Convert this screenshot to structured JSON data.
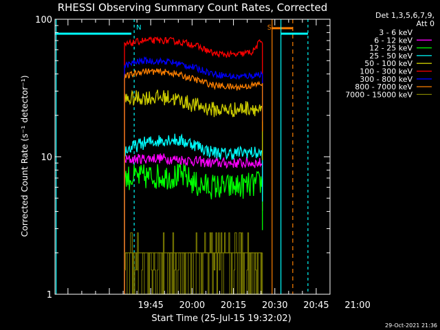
{
  "chart_data": {
    "type": "line",
    "title": "RHESSI Observing Summary Count Rates, Corrected",
    "xlabel": "Start Time (25-Jul-15 19:32:02)",
    "ylabel": "Corrected Count Rate (s⁻¹ detector⁻¹)",
    "y_scale": "log",
    "ylim": [
      1,
      100
    ],
    "x_range_minutes": [
      -21.7,
      78
    ],
    "x_ticks": [
      {
        "t": 13,
        "label": "19:45"
      },
      {
        "t": 28,
        "label": "20:00"
      },
      {
        "t": 43,
        "label": "20:15"
      },
      {
        "t": 58,
        "label": "20:30"
      },
      {
        "t": 73,
        "label": "20:45"
      },
      {
        "t": 88,
        "label": "21:00"
      }
    ],
    "y_ticks": [
      {
        "v": 1,
        "label": "1"
      },
      {
        "v": 10,
        "label": "10"
      },
      {
        "v": 100,
        "label": "100"
      }
    ],
    "legend_header": [
      "Det 1,3,5,6,7,9,",
      "Att 0"
    ],
    "legend_placement": "right",
    "timestamp": "29-Oct-2021 21:36",
    "data_start": 3.5,
    "data_end": 53.5,
    "series": [
      {
        "name": "3 - 6 keV",
        "color": "#000000",
        "values": [
          [
            3.5,
            25
          ],
          [
            10,
            25
          ],
          [
            20,
            25
          ],
          [
            28,
            25
          ],
          [
            34,
            24
          ],
          [
            38,
            24
          ],
          [
            45,
            25
          ],
          [
            53,
            25
          ]
        ],
        "noise": 0.03
      },
      {
        "name": "6 - 12 keV",
        "color": "#ff00ff",
        "values": [
          [
            3.5,
            9.5
          ],
          [
            15,
            9.8
          ],
          [
            25,
            9.5
          ],
          [
            35,
            9.0
          ],
          [
            45,
            9.0
          ],
          [
            53,
            9.0
          ]
        ],
        "noise": 0.04
      },
      {
        "name": "12 - 25 keV",
        "color": "#00ff00",
        "values": [
          [
            3.5,
            7
          ],
          [
            15,
            7.2
          ],
          [
            25,
            7.2
          ],
          [
            30,
            6.2
          ],
          [
            40,
            6.0
          ],
          [
            50,
            6.2
          ],
          [
            53,
            6.5
          ]
        ],
        "noise": 0.1
      },
      {
        "name": "25 - 50 keV",
        "color": "#00ffff",
        "values": [
          [
            3.5,
            11
          ],
          [
            10,
            12.5
          ],
          [
            20,
            13.5
          ],
          [
            28,
            12.5
          ],
          [
            34,
            11
          ],
          [
            40,
            10.5
          ],
          [
            48,
            10.8
          ],
          [
            53,
            10.5
          ]
        ],
        "noise": 0.05
      },
      {
        "name": "50 - 100 keV",
        "color": "#cccc00",
        "values": [
          [
            3.5,
            26
          ],
          [
            10,
            27
          ],
          [
            20,
            27
          ],
          [
            28,
            24
          ],
          [
            36,
            22
          ],
          [
            44,
            22
          ],
          [
            50,
            23
          ],
          [
            53,
            21
          ]
        ],
        "noise": 0.06
      },
      {
        "name": "100 - 300 keV",
        "color": "#ff0000",
        "values": [
          [
            3.5,
            65
          ],
          [
            10,
            70
          ],
          [
            20,
            70
          ],
          [
            28,
            66
          ],
          [
            36,
            56
          ],
          [
            44,
            55
          ],
          [
            50,
            58
          ],
          [
            53,
            70
          ]
        ],
        "noise": 0.025
      },
      {
        "name": "300 - 800 keV",
        "color": "#0000ff",
        "values": [
          [
            3.5,
            46
          ],
          [
            10,
            50
          ],
          [
            20,
            49
          ],
          [
            28,
            45
          ],
          [
            36,
            40
          ],
          [
            44,
            38
          ],
          [
            50,
            39
          ],
          [
            53,
            40
          ]
        ],
        "noise": 0.025
      },
      {
        "name": "800 - 7000 keV",
        "color": "#ff8000",
        "values": [
          [
            3.5,
            38
          ],
          [
            10,
            42
          ],
          [
            20,
            41
          ],
          [
            28,
            37
          ],
          [
            36,
            33
          ],
          [
            44,
            32
          ],
          [
            50,
            33
          ],
          [
            53,
            34
          ]
        ],
        "noise": 0.025
      },
      {
        "name": "7000 - 15000 keV",
        "color": "#808000",
        "values": [
          [
            3.5,
            1.5
          ],
          [
            53.5,
            1.5
          ]
        ],
        "noise": 0
      }
    ],
    "annotations": [
      {
        "t": 7,
        "label": "N",
        "kind": "night-start",
        "color": "#00ffff"
      },
      {
        "t": 57,
        "label": "S",
        "kind": "saa-start",
        "color": "#ff8000"
      }
    ]
  }
}
